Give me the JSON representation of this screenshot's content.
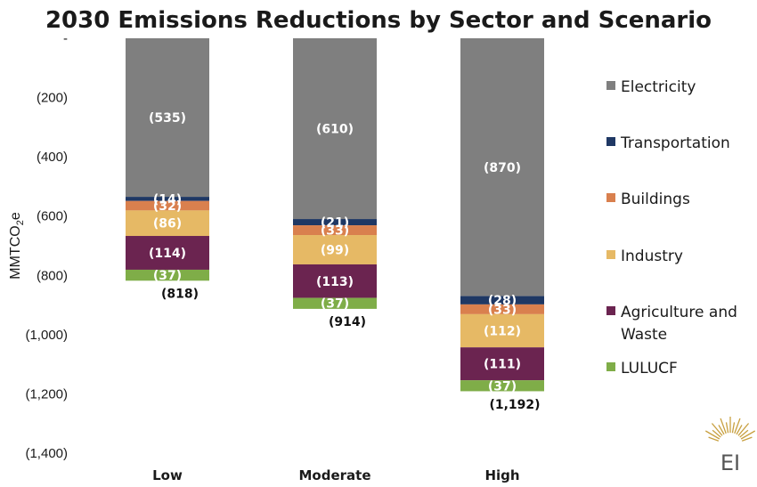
{
  "chart_data": {
    "type": "bar",
    "stacked": true,
    "title": "2030 Emissions Reductions by Sector and Scenario",
    "ylabel": "MMTCO2e",
    "categories": [
      "Low",
      "Moderate",
      "High"
    ],
    "ylim": [
      -1400,
      0
    ],
    "yticks": [
      0,
      -200,
      -400,
      -600,
      -800,
      -1000,
      -1200,
      -1400
    ],
    "ytick_labels": [
      "-",
      "(200)",
      "(400)",
      "(600)",
      "(800)",
      "(1,000)",
      "(1,200)",
      "(1,400)"
    ],
    "series": [
      {
        "name": "Electricity",
        "values": [
          -535,
          -610,
          -870
        ],
        "labels": [
          "(535)",
          "(610)",
          "(870)"
        ],
        "color": "#7f7f7f"
      },
      {
        "name": "Transportation",
        "values": [
          -14,
          -21,
          -28
        ],
        "labels": [
          "(14)",
          "(21)",
          "(28)"
        ],
        "color": "#1f3864"
      },
      {
        "name": "Buildings",
        "values": [
          -32,
          -33,
          -33
        ],
        "labels": [
          "(32)",
          "(33)",
          "(33)"
        ],
        "color": "#d9804e"
      },
      {
        "name": "Industry",
        "values": [
          -86,
          -99,
          -112
        ],
        "labels": [
          "(86)",
          "(99)",
          "(112)"
        ],
        "color": "#e6b965"
      },
      {
        "name": "Agriculture and Waste",
        "values": [
          -114,
          -113,
          -111
        ],
        "labels": [
          "(114)",
          "(113)",
          "(111)"
        ],
        "color": "#6b2450"
      },
      {
        "name": "LULUCF",
        "values": [
          -37,
          -37,
          -37
        ],
        "labels": [
          "(37)",
          "(37)",
          "(37)"
        ],
        "color": "#7fad48"
      }
    ],
    "totals": [
      -818,
      -914,
      -1192
    ],
    "total_labels": [
      "(818)",
      "(914)",
      "(1,192)"
    ],
    "grid": false,
    "legend": "right"
  },
  "logo": {
    "text": "EI",
    "color": "#c8a040"
  }
}
